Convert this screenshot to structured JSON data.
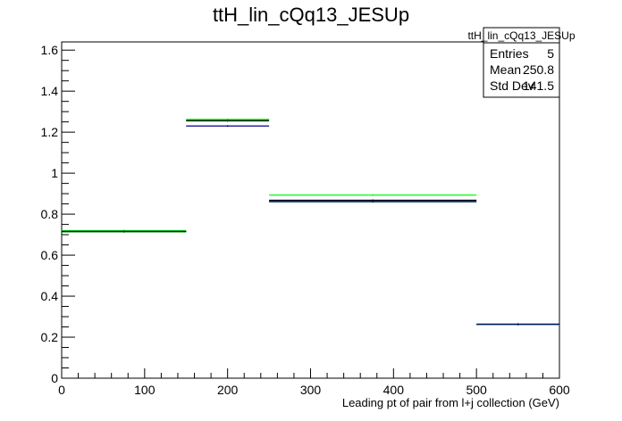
{
  "chart_data": {
    "type": "histogram",
    "title": "ttH_lin_cQq13_JESUp",
    "xlabel": "Leading pt of pair from l+j collection (GeV)",
    "ylabel": "",
    "xlim": [
      0,
      600
    ],
    "ylim": [
      0,
      1.64
    ],
    "x_ticks": [
      0,
      100,
      200,
      300,
      400,
      500,
      600
    ],
    "y_ticks": [
      0,
      0.2,
      0.4,
      0.6,
      0.8,
      1,
      1.2,
      1.4,
      1.6
    ],
    "bin_edges": [
      0,
      150,
      250,
      500,
      600
    ],
    "series": [
      {
        "color": "#000000",
        "values": [
          0.718,
          1.255,
          0.868,
          0.262
        ]
      },
      {
        "color": "#00ff00",
        "values": [
          0.72,
          1.262,
          0.893,
          0.262
        ]
      },
      {
        "color": "#006400",
        "values": [
          0.714,
          1.258,
          0.86,
          0.262
        ]
      },
      {
        "color": "#00008b",
        "values": [
          0.716,
          1.23,
          0.862,
          0.264
        ]
      }
    ],
    "stats_box": {
      "title": "ttH_lin_cQq13_JESUp",
      "rows": [
        {
          "label": "Entries",
          "value": "5"
        },
        {
          "label": "Mean",
          "value": "250.8"
        },
        {
          "label": "Std Dev",
          "value": "141.5"
        }
      ]
    },
    "grid": false,
    "legend": "none"
  }
}
